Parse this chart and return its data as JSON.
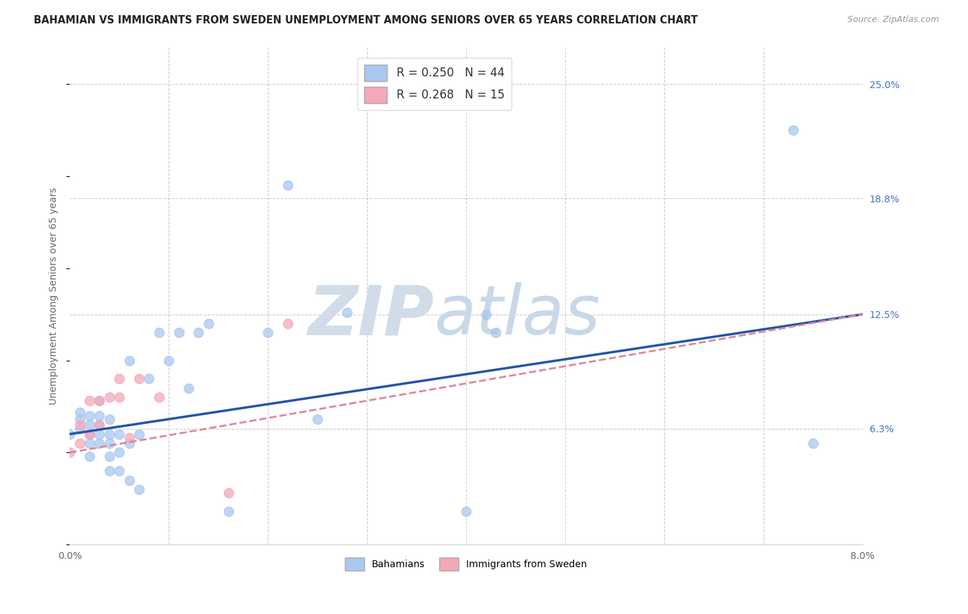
{
  "title": "BAHAMIAN VS IMMIGRANTS FROM SWEDEN UNEMPLOYMENT AMONG SENIORS OVER 65 YEARS CORRELATION CHART",
  "source": "Source: ZipAtlas.com",
  "ylabel": "Unemployment Among Seniors over 65 years",
  "xlim": [
    0.0,
    0.08
  ],
  "ylim": [
    0.0,
    0.27
  ],
  "blue_R": 0.25,
  "blue_N": 44,
  "pink_R": 0.268,
  "pink_N": 15,
  "blue_color": "#A8C8F0",
  "pink_color": "#F4A8B8",
  "line_blue": "#2255AA",
  "line_pink": "#DD8899",
  "background_color": "#FFFFFF",
  "blue_x": [
    0.0,
    0.001,
    0.001,
    0.001,
    0.002,
    0.002,
    0.002,
    0.002,
    0.002,
    0.003,
    0.003,
    0.003,
    0.003,
    0.003,
    0.004,
    0.004,
    0.004,
    0.004,
    0.004,
    0.005,
    0.005,
    0.005,
    0.006,
    0.006,
    0.006,
    0.007,
    0.007,
    0.008,
    0.009,
    0.01,
    0.011,
    0.012,
    0.013,
    0.014,
    0.016,
    0.02,
    0.022,
    0.025,
    0.028,
    0.04,
    0.042,
    0.043,
    0.073,
    0.075
  ],
  "blue_y": [
    0.06,
    0.063,
    0.068,
    0.072,
    0.048,
    0.055,
    0.06,
    0.065,
    0.07,
    0.055,
    0.06,
    0.065,
    0.07,
    0.078,
    0.04,
    0.048,
    0.055,
    0.06,
    0.068,
    0.04,
    0.05,
    0.06,
    0.035,
    0.055,
    0.1,
    0.03,
    0.06,
    0.09,
    0.115,
    0.1,
    0.115,
    0.085,
    0.115,
    0.12,
    0.018,
    0.115,
    0.195,
    0.068,
    0.126,
    0.018,
    0.125,
    0.115,
    0.225,
    0.055
  ],
  "pink_x": [
    0.0,
    0.001,
    0.001,
    0.002,
    0.002,
    0.003,
    0.003,
    0.004,
    0.005,
    0.005,
    0.006,
    0.007,
    0.009,
    0.016,
    0.022
  ],
  "pink_y": [
    0.05,
    0.055,
    0.065,
    0.06,
    0.078,
    0.065,
    0.078,
    0.08,
    0.08,
    0.09,
    0.058,
    0.09,
    0.08,
    0.028,
    0.12
  ],
  "blue_line_x0": 0.0,
  "blue_line_y0": 0.06,
  "blue_line_x1": 0.08,
  "blue_line_y1": 0.125,
  "pink_line_x0": 0.0,
  "pink_line_y0": 0.05,
  "pink_line_x1": 0.08,
  "pink_line_y1": 0.125,
  "ytick_right_vals": [
    0.063,
    0.125,
    0.188,
    0.25
  ],
  "ytick_right_labels": [
    "6.3%",
    "12.5%",
    "18.8%",
    "25.0%"
  ]
}
